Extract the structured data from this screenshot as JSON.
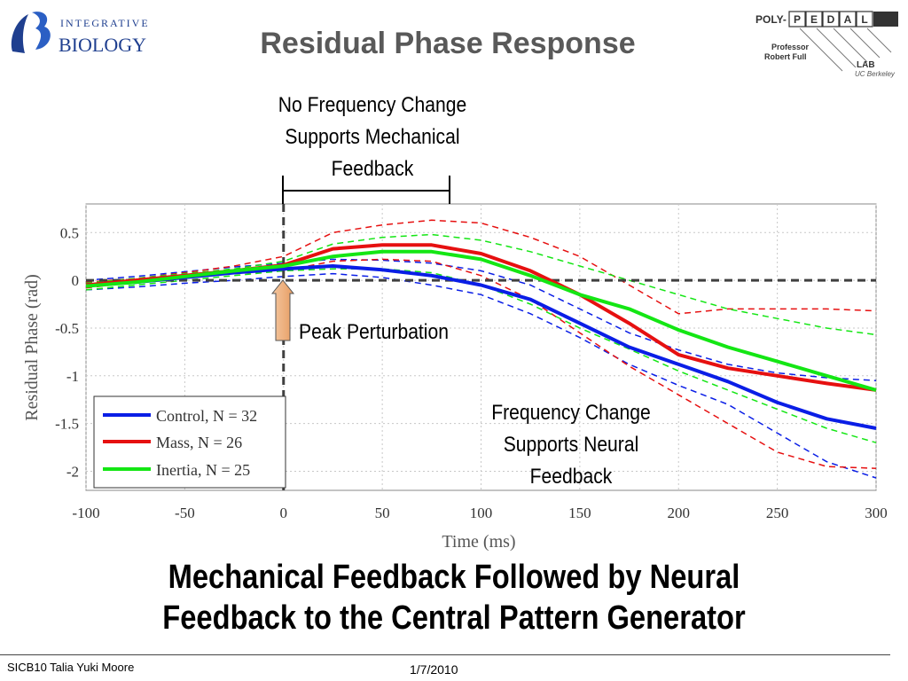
{
  "slide": {
    "title": "Residual Phase Response",
    "headline_line1": "Mechanical Feedback Followed by Neural",
    "headline_line2": "Feedback to the Central Pattern Generator",
    "footer_left": "SICB10 Talia Yuki Moore",
    "footer_date": "1/7/2010"
  },
  "logos": {
    "left": {
      "line1": "INTEGRATIVE",
      "line2": "BIOLOGY",
      "color": "#1f3f8f"
    },
    "right": {
      "prefix": "POLY-",
      "letters": [
        "P",
        "E",
        "D",
        "A",
        "L"
      ],
      "professor_line1": "Professor",
      "professor_line2": "Robert Full",
      "lab": "LAB",
      "affiliation": "UC Berkeley"
    }
  },
  "annotations": {
    "top_line1": "No Frequency Change",
    "top_line2": "Supports Mechanical",
    "top_line3": "Feedback",
    "peak": "Peak Perturbation",
    "neural_line1": "Frequency Change",
    "neural_line2": "Supports Neural",
    "neural_line3": "Feedback"
  },
  "chart_data": {
    "type": "line",
    "title": "",
    "xlabel": "Time (ms)",
    "ylabel": "Residual Phase (rad)",
    "xlim": [
      -100,
      300
    ],
    "ylim": [
      -2.2,
      0.8
    ],
    "xticks": [
      -100,
      -50,
      0,
      50,
      100,
      150,
      200,
      250,
      300
    ],
    "yticks": [
      0.5,
      0,
      -0.5,
      -1,
      -1.5,
      -2
    ],
    "grid": true,
    "legend_position": "bottom-left",
    "colors": {
      "Control": "#0a1ee6",
      "Mass": "#e61010",
      "Inertia": "#14e614",
      "reference": "#404040"
    },
    "x": [
      -100,
      -75,
      -50,
      -25,
      0,
      25,
      50,
      75,
      100,
      125,
      150,
      175,
      200,
      225,
      250,
      275,
      300
    ],
    "series": [
      {
        "name": "Control, N = 32",
        "role": "mean",
        "values": [
          -0.05,
          -0.02,
          0.03,
          0.08,
          0.12,
          0.15,
          0.11,
          0.05,
          -0.05,
          -0.2,
          -0.45,
          -0.7,
          -0.88,
          -1.06,
          -1.28,
          -1.45,
          -1.55
        ]
      },
      {
        "name": "Mass, N = 26",
        "role": "mean",
        "values": [
          -0.05,
          0.0,
          0.05,
          0.1,
          0.16,
          0.33,
          0.37,
          0.37,
          0.28,
          0.1,
          -0.15,
          -0.45,
          -0.78,
          -0.92,
          -1.0,
          -1.08,
          -1.15
        ]
      },
      {
        "name": "Inertia, N = 25",
        "role": "mean",
        "values": [
          -0.06,
          -0.02,
          0.04,
          0.1,
          0.15,
          0.25,
          0.3,
          0.3,
          0.22,
          0.05,
          -0.15,
          -0.3,
          -0.52,
          -0.7,
          -0.85,
          -1.0,
          -1.15
        ]
      },
      {
        "name": "Control upper",
        "role": "bound",
        "values": [
          0.0,
          0.04,
          0.09,
          0.14,
          0.18,
          0.22,
          0.21,
          0.18,
          0.1,
          -0.05,
          -0.3,
          -0.55,
          -0.73,
          -0.88,
          -0.97,
          -1.02,
          -1.05
        ]
      },
      {
        "name": "Control lower",
        "role": "bound",
        "values": [
          -0.1,
          -0.07,
          -0.03,
          0.0,
          0.04,
          0.07,
          0.03,
          -0.05,
          -0.15,
          -0.35,
          -0.6,
          -0.88,
          -1.1,
          -1.3,
          -1.6,
          -1.9,
          -2.07
        ]
      },
      {
        "name": "Mass upper",
        "role": "bound",
        "values": [
          -0.02,
          0.02,
          0.08,
          0.15,
          0.25,
          0.5,
          0.58,
          0.63,
          0.6,
          0.45,
          0.25,
          -0.05,
          -0.35,
          -0.3,
          -0.3,
          -0.3,
          -0.32
        ]
      },
      {
        "name": "Mass lower",
        "role": "bound",
        "values": [
          -0.08,
          -0.02,
          0.03,
          0.07,
          0.1,
          0.2,
          0.22,
          0.2,
          0.05,
          -0.2,
          -0.55,
          -0.9,
          -1.2,
          -1.5,
          -1.8,
          -1.95,
          -1.97
        ]
      },
      {
        "name": "Inertia upper",
        "role": "bound",
        "values": [
          -0.03,
          0.02,
          0.07,
          0.12,
          0.2,
          0.38,
          0.45,
          0.48,
          0.42,
          0.3,
          0.15,
          0.0,
          -0.15,
          -0.3,
          -0.4,
          -0.5,
          -0.57
        ]
      },
      {
        "name": "Inertia lower",
        "role": "bound",
        "values": [
          -0.1,
          -0.05,
          0.0,
          0.05,
          0.1,
          0.12,
          0.12,
          0.08,
          -0.05,
          -0.25,
          -0.5,
          -0.72,
          -0.95,
          -1.15,
          -1.35,
          -1.55,
          -1.7
        ]
      }
    ]
  }
}
